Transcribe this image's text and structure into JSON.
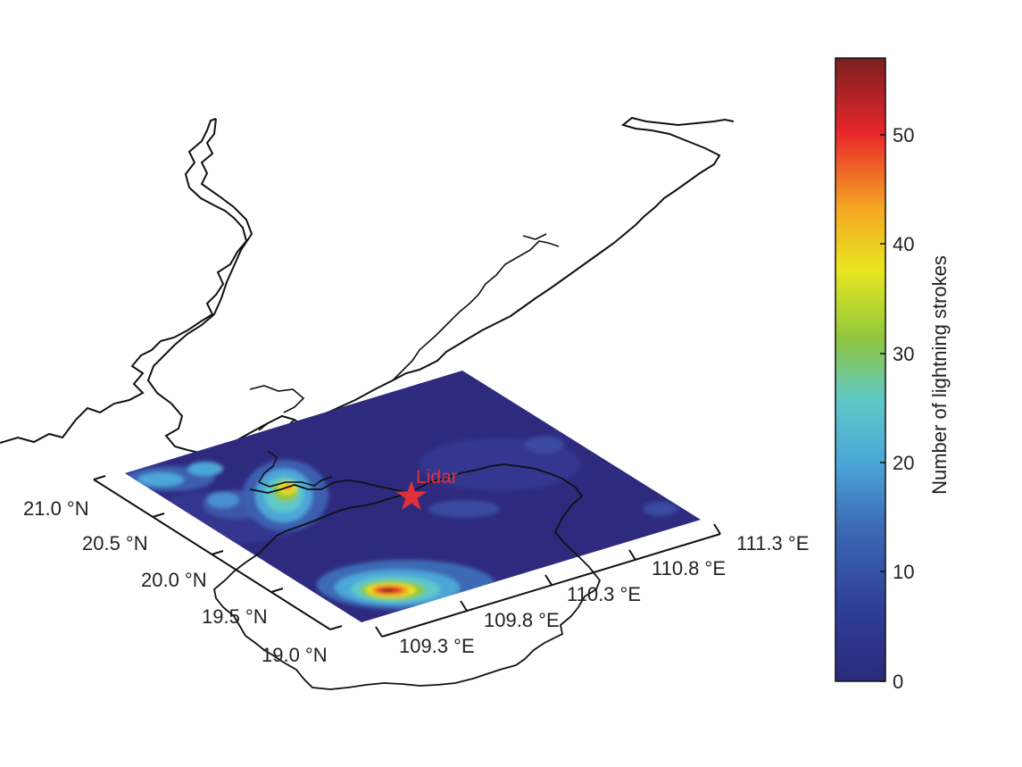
{
  "map": {
    "type": "3d-tilted-contour-map",
    "lat_ticks": [
      "21.0 °N",
      "20.5 °N",
      "20.0 °N",
      "19.5 °N",
      "19.0 °N"
    ],
    "lon_ticks": [
      "109.3 °E",
      "109.8 °E",
      "110.3 °E",
      "110.8 °E",
      "111.3 °E"
    ],
    "lat_values": [
      21.0,
      20.5,
      20.0,
      19.5,
      19.0
    ],
    "lon_values": [
      109.3,
      109.8,
      110.3,
      110.8,
      111.3
    ],
    "marker": {
      "label": "Lidar",
      "symbol": "star",
      "color": "#e0303a",
      "lat": 20.9,
      "lon": 110.35
    },
    "hotspots": [
      {
        "lat": 20.95,
        "lon": 109.55,
        "value": 38
      },
      {
        "lat": 20.0,
        "lon": 110.0,
        "value": 55
      },
      {
        "lat": 21.25,
        "lon": 109.35,
        "value": 15
      },
      {
        "lat": 20.7,
        "lon": 109.5,
        "value": 18
      }
    ]
  },
  "colorbar": {
    "title": "Number of lightning strokes",
    "min": 0,
    "max": 57,
    "ticks": [
      {
        "value": 0,
        "label": "0"
      },
      {
        "value": 10,
        "label": "10"
      },
      {
        "value": 20,
        "label": "20"
      },
      {
        "value": 30,
        "label": "30"
      },
      {
        "value": 40,
        "label": "40"
      },
      {
        "value": 50,
        "label": "50"
      }
    ],
    "colormap": "jet",
    "colors": [
      "#2b2a7a",
      "#2e3f9a",
      "#3c6bb5",
      "#4aa6d8",
      "#5ec8c8",
      "#8fc73e",
      "#e8e620",
      "#f5a623",
      "#e8262a",
      "#7a1f1f"
    ]
  }
}
